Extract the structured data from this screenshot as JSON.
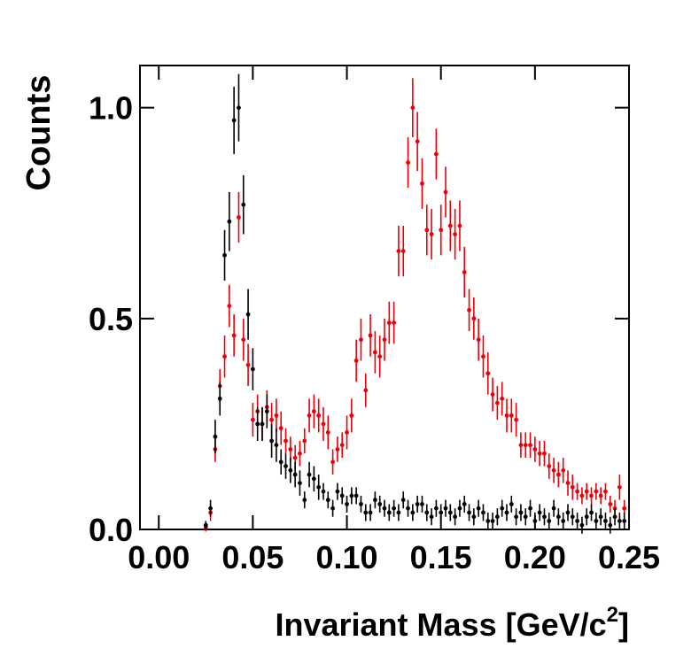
{
  "chart_data": {
    "type": "scatter",
    "ylabel": "Counts",
    "xlabel": [
      "Invariant Mass [GeV/c",
      "2",
      "]"
    ],
    "xlim": [
      -0.01,
      0.25
    ],
    "ylim": [
      0,
      1.1
    ],
    "xticks": [
      {
        "value": 0,
        "label": "0.00"
      },
      {
        "value": 0.05,
        "label": "0.05"
      },
      {
        "value": 0.1,
        "label": "0.10"
      },
      {
        "value": 0.15,
        "label": "0.15"
      },
      {
        "value": 0.2,
        "label": "0.20"
      },
      {
        "value": 0.25,
        "label": "0.25"
      }
    ],
    "yticks": [
      {
        "value": 0,
        "label": "0.0"
      },
      {
        "value": 0.5,
        "label": "0.5"
      },
      {
        "value": 1,
        "label": "1.0"
      }
    ],
    "x": [
      0.025,
      0.0275,
      0.03,
      0.0325,
      0.035,
      0.0375,
      0.04,
      0.0425,
      0.045,
      0.0475,
      0.05,
      0.0525,
      0.055,
      0.0575,
      0.06,
      0.0625,
      0.065,
      0.0675,
      0.07,
      0.0725,
      0.075,
      0.0775,
      0.08,
      0.0825,
      0.085,
      0.0875,
      0.09,
      0.0925,
      0.095,
      0.0975,
      0.1,
      0.1025,
      0.105,
      0.1075,
      0.11,
      0.1125,
      0.115,
      0.1175,
      0.12,
      0.1225,
      0.125,
      0.1275,
      0.13,
      0.1325,
      0.135,
      0.1375,
      0.14,
      0.1425,
      0.145,
      0.1475,
      0.15,
      0.1525,
      0.155,
      0.1575,
      0.16,
      0.1625,
      0.165,
      0.1675,
      0.17,
      0.1725,
      0.175,
      0.1775,
      0.18,
      0.1825,
      0.185,
      0.1875,
      0.19,
      0.1925,
      0.195,
      0.1975,
      0.2,
      0.2025,
      0.205,
      0.2075,
      0.21,
      0.2125,
      0.215,
      0.2175,
      0.22,
      0.2225,
      0.225,
      0.2275,
      0.23,
      0.2325,
      0.235,
      0.2375,
      0.24,
      0.2425,
      0.245,
      0.2475
    ],
    "series": [
      {
        "color": "#e8000b",
        "values": [
          0.005,
          0.04,
          0.19,
          0.34,
          0.41,
          0.53,
          0.46,
          0.74,
          0.45,
          0.39,
          0.26,
          0.28,
          0.25,
          0.29,
          0.26,
          0.27,
          0.24,
          0.21,
          0.19,
          0.17,
          0.18,
          0.21,
          0.27,
          0.28,
          0.27,
          0.25,
          0.23,
          0.16,
          0.19,
          0.2,
          0.23,
          0.27,
          0.4,
          0.45,
          0.33,
          0.46,
          0.42,
          0.41,
          0.45,
          0.49,
          0.49,
          0.66,
          0.66,
          0.87,
          1.0,
          0.92,
          0.82,
          0.71,
          0.7,
          0.89,
          0.71,
          0.8,
          0.72,
          0.7,
          0.72,
          0.61,
          0.52,
          0.5,
          0.45,
          0.41,
          0.37,
          0.32,
          0.3,
          0.31,
          0.27,
          0.27,
          0.26,
          0.2,
          0.2,
          0.2,
          0.19,
          0.18,
          0.18,
          0.15,
          0.14,
          0.13,
          0.14,
          0.11,
          0.1,
          0.09,
          0.08,
          0.09,
          0.08,
          0.09,
          0.08,
          0.09,
          0.06,
          0.05,
          0.1,
          0.05
        ],
        "errors": [
          0.01,
          0.02,
          0.03,
          0.04,
          0.05,
          0.05,
          0.05,
          0.06,
          0.05,
          0.05,
          0.04,
          0.04,
          0.04,
          0.04,
          0.04,
          0.04,
          0.04,
          0.03,
          0.03,
          0.03,
          0.03,
          0.03,
          0.04,
          0.04,
          0.04,
          0.04,
          0.04,
          0.03,
          0.03,
          0.03,
          0.04,
          0.04,
          0.05,
          0.05,
          0.04,
          0.05,
          0.05,
          0.05,
          0.05,
          0.05,
          0.05,
          0.06,
          0.06,
          0.06,
          0.07,
          0.07,
          0.06,
          0.06,
          0.06,
          0.06,
          0.06,
          0.06,
          0.06,
          0.06,
          0.06,
          0.06,
          0.05,
          0.05,
          0.05,
          0.05,
          0.05,
          0.04,
          0.04,
          0.04,
          0.04,
          0.04,
          0.04,
          0.03,
          0.03,
          0.03,
          0.03,
          0.03,
          0.03,
          0.03,
          0.03,
          0.03,
          0.03,
          0.03,
          0.03,
          0.02,
          0.02,
          0.02,
          0.02,
          0.02,
          0.02,
          0.02,
          0.02,
          0.02,
          0.03,
          0.02
        ]
      },
      {
        "color": "#000000",
        "values": [
          0.01,
          0.05,
          0.22,
          0.31,
          0.65,
          0.73,
          0.97,
          1.0,
          0.77,
          0.51,
          0.38,
          0.25,
          0.25,
          0.28,
          0.21,
          0.2,
          0.16,
          0.15,
          0.14,
          0.13,
          0.11,
          0.07,
          0.13,
          0.12,
          0.1,
          0.09,
          0.07,
          0.05,
          0.09,
          0.08,
          0.06,
          0.08,
          0.08,
          0.06,
          0.04,
          0.04,
          0.07,
          0.06,
          0.05,
          0.04,
          0.05,
          0.04,
          0.07,
          0.05,
          0.04,
          0.06,
          0.06,
          0.04,
          0.03,
          0.05,
          0.04,
          0.05,
          0.04,
          0.03,
          0.05,
          0.06,
          0.04,
          0.03,
          0.05,
          0.04,
          0.02,
          0.02,
          0.03,
          0.05,
          0.04,
          0.06,
          0.03,
          0.04,
          0.03,
          0.05,
          0.02,
          0.04,
          0.03,
          0.02,
          0.05,
          0.03,
          0.02,
          0.04,
          0.03,
          0.02,
          0.01,
          0.03,
          0.04,
          0.02,
          0.03,
          0.02,
          0.01,
          0.03,
          0.02,
          0.02
        ],
        "errors": [
          0.01,
          0.02,
          0.04,
          0.04,
          0.06,
          0.07,
          0.08,
          0.08,
          0.07,
          0.06,
          0.05,
          0.04,
          0.04,
          0.04,
          0.04,
          0.04,
          0.03,
          0.03,
          0.03,
          0.03,
          0.03,
          0.02,
          0.03,
          0.03,
          0.03,
          0.02,
          0.02,
          0.02,
          0.02,
          0.02,
          0.02,
          0.02,
          0.02,
          0.02,
          0.02,
          0.02,
          0.02,
          0.02,
          0.02,
          0.02,
          0.02,
          0.02,
          0.02,
          0.02,
          0.02,
          0.02,
          0.02,
          0.02,
          0.02,
          0.02,
          0.02,
          0.02,
          0.02,
          0.02,
          0.02,
          0.02,
          0.02,
          0.02,
          0.02,
          0.02,
          0.02,
          0.02,
          0.02,
          0.02,
          0.02,
          0.02,
          0.02,
          0.02,
          0.02,
          0.02,
          0.02,
          0.02,
          0.02,
          0.02,
          0.02,
          0.02,
          0.02,
          0.02,
          0.02,
          0.02,
          0.02,
          0.02,
          0.02,
          0.02,
          0.02,
          0.02,
          0.02,
          0.02,
          0.02,
          0.02
        ]
      }
    ]
  }
}
